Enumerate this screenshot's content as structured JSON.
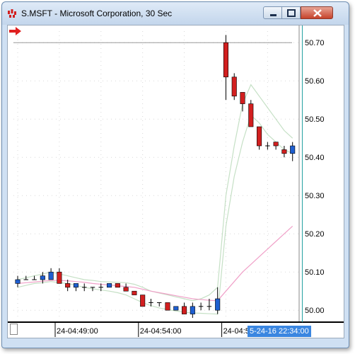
{
  "window": {
    "title": "S.MSFT - Microsoft Corporation, 30 Sec",
    "icon": "chart-app-icon",
    "controls": [
      "minimize-icon",
      "maximize-icon",
      "close-icon"
    ]
  },
  "colors": {
    "up_candle": "#1f5fd0",
    "down_candle": "#d21f1f",
    "upper_band": "#c5e0c5",
    "lower_band": "#c5e0c5",
    "moving_average": "#f0a0c8",
    "horizontal_line": "#9a9a9a",
    "cursor_line": "#20a0a0",
    "cursor_label_bg": "#3a86e0",
    "scroll_arrow": "#e02020"
  },
  "chart_data": {
    "type": "candlestick",
    "ylim": [
      49.98,
      50.73
    ],
    "yticks": [
      "50.70",
      "50.60",
      "50.50",
      "50.40",
      "50.30",
      "50.20",
      "50.10",
      "50.00"
    ],
    "ytick_values": [
      50.7,
      50.6,
      50.5,
      50.4,
      50.3,
      50.2,
      50.1,
      50.0
    ],
    "xticks": [
      {
        "label": "24-04:49:00",
        "index": 5
      },
      {
        "label": "24-04:54:00",
        "index": 15
      },
      {
        "label": "24-04:59:00",
        "index": 25
      }
    ],
    "cursor_time": "5-24-16 22:34:00",
    "cursor_index": 34,
    "horizontal_line_value": 50.7,
    "candles": [
      {
        "o": 50.07,
        "h": 50.09,
        "l": 50.06,
        "c": 50.08
      },
      {
        "o": 50.08,
        "h": 50.09,
        "l": 50.08,
        "c": 50.08
      },
      {
        "o": 50.08,
        "h": 50.09,
        "l": 50.08,
        "c": 50.08
      },
      {
        "o": 50.08,
        "h": 50.1,
        "l": 50.07,
        "c": 50.09
      },
      {
        "o": 50.08,
        "h": 50.11,
        "l": 50.08,
        "c": 50.1
      },
      {
        "o": 50.1,
        "h": 50.11,
        "l": 50.07,
        "c": 50.07
      },
      {
        "o": 50.07,
        "h": 50.08,
        "l": 50.05,
        "c": 50.06
      },
      {
        "o": 50.06,
        "h": 50.07,
        "l": 50.05,
        "c": 50.07
      },
      {
        "o": 50.06,
        "h": 50.07,
        "l": 50.05,
        "c": 50.06
      },
      {
        "o": 50.06,
        "h": 50.06,
        "l": 50.05,
        "c": 50.06
      },
      {
        "o": 50.06,
        "h": 50.07,
        "l": 50.05,
        "c": 50.06
      },
      {
        "o": 50.06,
        "h": 50.07,
        "l": 50.06,
        "c": 50.07
      },
      {
        "o": 50.07,
        "h": 50.07,
        "l": 50.06,
        "c": 50.06
      },
      {
        "o": 50.06,
        "h": 50.07,
        "l": 50.05,
        "c": 50.05
      },
      {
        "o": 50.05,
        "h": 50.05,
        "l": 50.04,
        "c": 50.04
      },
      {
        "o": 50.04,
        "h": 50.04,
        "l": 50.01,
        "c": 50.01
      },
      {
        "o": 50.02,
        "h": 50.03,
        "l": 50.01,
        "c": 50.02
      },
      {
        "o": 50.02,
        "h": 50.02,
        "l": 50.01,
        "c": 50.02
      },
      {
        "o": 50.02,
        "h": 50.02,
        "l": 50.0,
        "c": 50.0
      },
      {
        "o": 50.0,
        "h": 50.01,
        "l": 50.0,
        "c": 50.01
      },
      {
        "o": 50.01,
        "h": 50.02,
        "l": 49.99,
        "c": 49.99
      },
      {
        "o": 49.99,
        "h": 50.02,
        "l": 49.98,
        "c": 50.01
      },
      {
        "o": 50.01,
        "h": 50.02,
        "l": 50.0,
        "c": 50.01
      },
      {
        "o": 50.01,
        "h": 50.03,
        "l": 50.0,
        "c": 50.01
      },
      {
        "o": 50.0,
        "h": 50.06,
        "l": 49.99,
        "c": 50.03
      },
      {
        "o": 50.7,
        "h": 50.72,
        "l": 50.55,
        "c": 50.61
      },
      {
        "o": 50.61,
        "h": 50.62,
        "l": 50.55,
        "c": 50.56
      },
      {
        "o": 50.57,
        "h": 50.57,
        "l": 50.52,
        "c": 50.54
      },
      {
        "o": 50.54,
        "h": 50.55,
        "l": 50.48,
        "c": 50.48
      },
      {
        "o": 50.48,
        "h": 50.48,
        "l": 50.42,
        "c": 50.43
      },
      {
        "o": 50.43,
        "h": 50.44,
        "l": 50.42,
        "c": 50.43
      },
      {
        "o": 50.44,
        "h": 50.44,
        "l": 50.42,
        "c": 50.43
      },
      {
        "o": 50.42,
        "h": 50.43,
        "l": 50.4,
        "c": 50.41
      },
      {
        "o": 50.41,
        "h": 50.44,
        "l": 50.39,
        "c": 50.43
      }
    ],
    "upper_band": [
      50.08,
      50.085,
      50.09,
      50.095,
      50.1,
      50.095,
      50.09,
      50.085,
      50.08,
      50.078,
      50.075,
      50.074,
      50.073,
      50.072,
      50.068,
      50.06,
      50.05,
      50.045,
      50.04,
      50.035,
      50.03,
      50.025,
      50.03,
      50.04,
      50.06,
      50.3,
      50.43,
      50.54,
      50.59,
      50.56,
      50.53,
      50.5,
      50.47,
      50.45
    ],
    "lower_band": [
      50.06,
      50.065,
      50.07,
      50.072,
      50.075,
      50.072,
      50.07,
      50.065,
      50.06,
      50.056,
      50.053,
      50.05,
      50.046,
      50.04,
      50.03,
      50.02,
      50.012,
      50.006,
      50.002,
      49.998,
      49.995,
      49.993,
      49.992,
      49.991,
      49.99,
      50.22,
      50.35,
      50.44,
      50.51,
      50.49,
      50.46,
      50.44,
      50.42,
      50.41
    ],
    "moving_average": [
      50.07,
      50.072,
      50.074,
      50.076,
      50.078,
      50.078,
      50.077,
      50.075,
      50.073,
      50.07,
      50.068,
      50.066,
      50.064,
      50.062,
      50.06,
      50.055,
      50.05,
      50.046,
      50.042,
      50.038,
      50.034,
      50.03,
      50.028,
      50.026,
      50.025,
      50.05,
      50.075,
      50.1,
      50.12,
      50.14,
      50.16,
      50.18,
      50.2,
      50.22
    ]
  }
}
